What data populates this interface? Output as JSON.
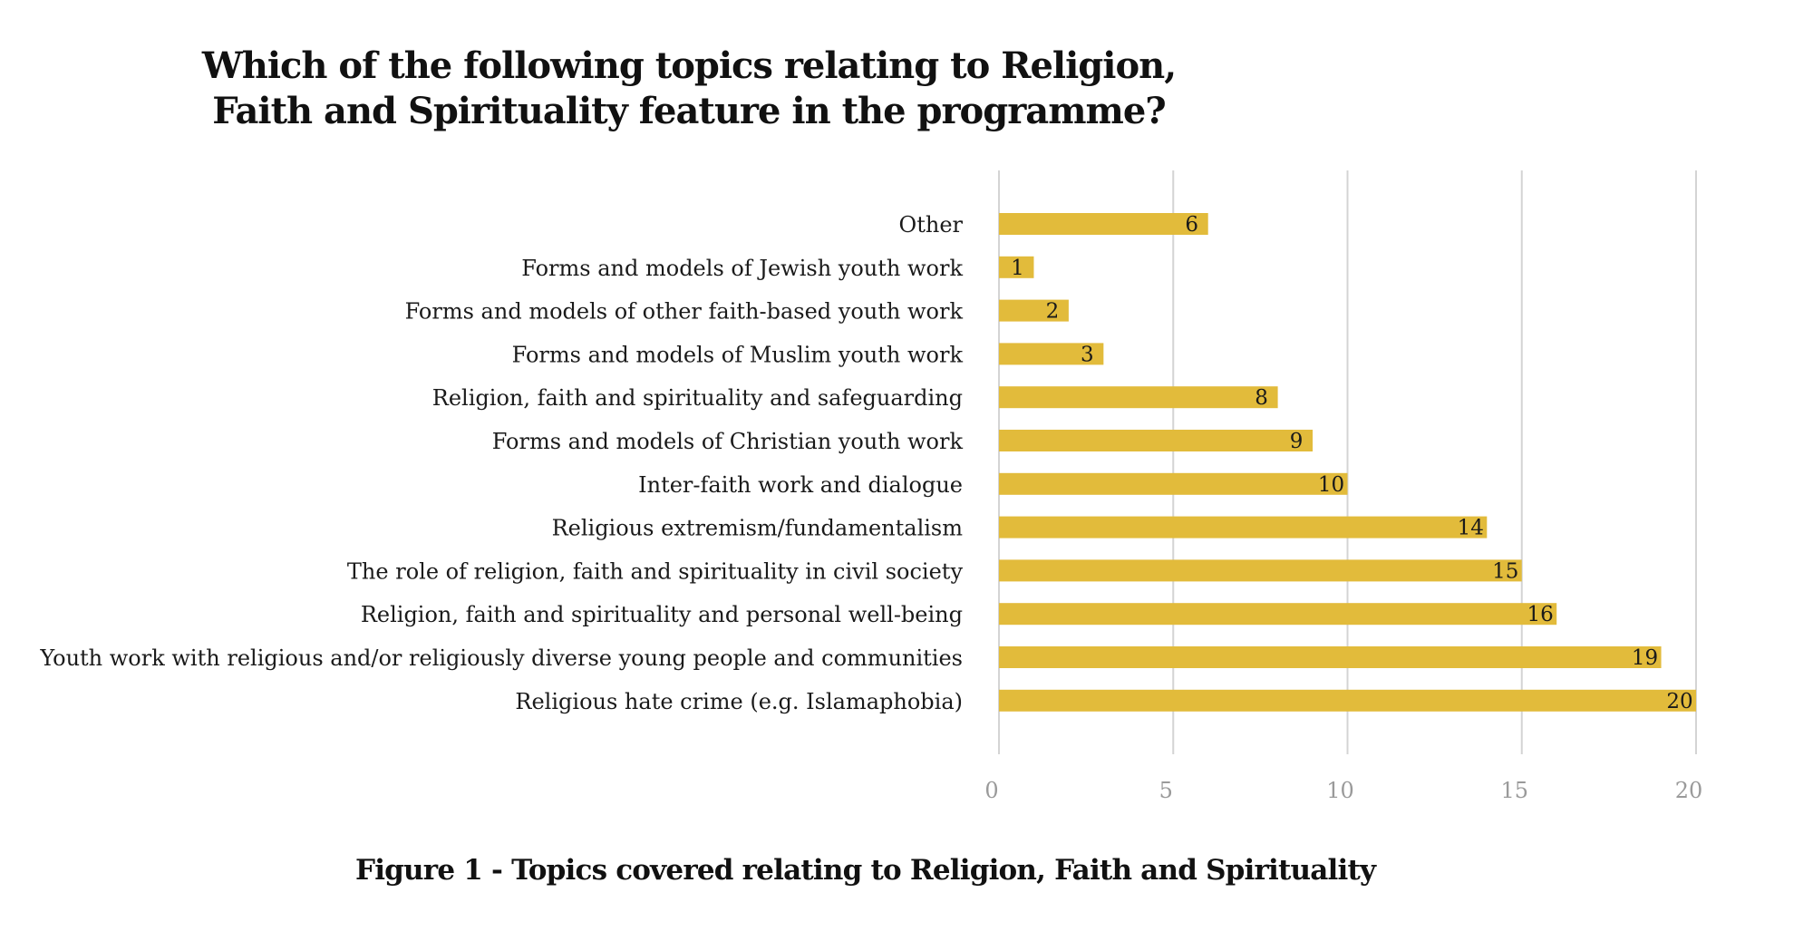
{
  "chart_data": {
    "type": "bar",
    "orientation": "horizontal",
    "title_lines": [
      "Which of the following topics relating to Religion,",
      "Faith and Spirituality feature in the programme?"
    ],
    "categories": [
      "Other",
      "Forms and models of Jewish youth work",
      "Forms and models of other faith-based youth work",
      "Forms and models of Muslim youth work",
      "Religion, faith and spirituality and safeguarding",
      "Forms and models of Christian youth work",
      "Inter-faith work and dialogue",
      "Religious extremism/fundamentalism",
      "The role of religion, faith and spirituality in civil society",
      "Religion, faith and spirituality and personal well-being",
      "Youth work with religious and/or religiously diverse young people and communities",
      "Religious hate crime (e.g. Islamaphobia)"
    ],
    "values": [
      6,
      1,
      2,
      3,
      8,
      9,
      10,
      14,
      15,
      16,
      19,
      20
    ],
    "xlim": [
      0,
      20
    ],
    "xticks": [
      0,
      5,
      10,
      15,
      20
    ],
    "grid": true,
    "data_labels": true,
    "bar_color": "#e2bb3b",
    "grid_color": "#d4d4d4",
    "tick_color": "#9a9a9a"
  },
  "caption": "Figure 1 - Topics covered relating to Religion, Faith and Spirituality"
}
